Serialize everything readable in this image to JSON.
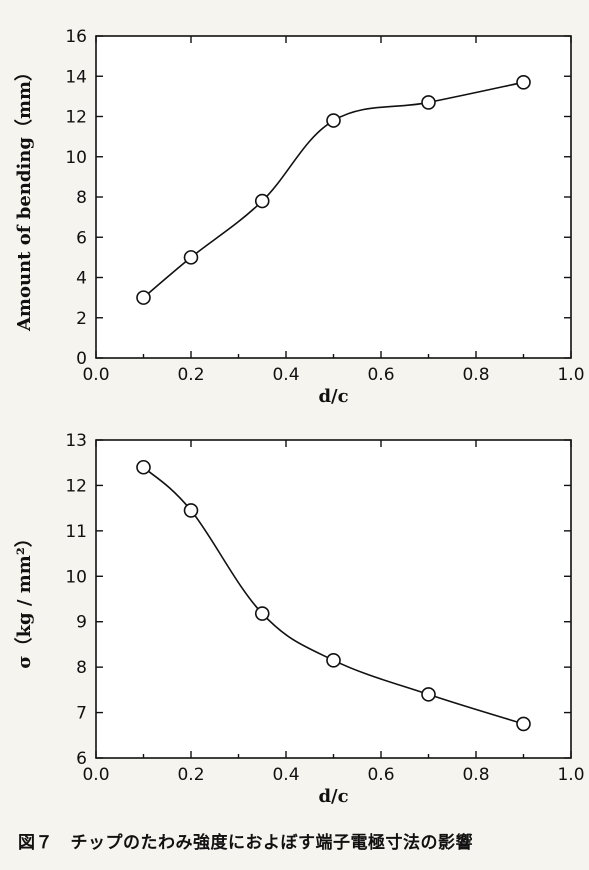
{
  "caption": "図７　チップのたわみ強度におよぼす端子電極寸法の影響",
  "chart_data": [
    {
      "type": "line",
      "xlabel": "d/c",
      "ylabel": "Amount of bending（mm）",
      "xlim": [
        0.0,
        1.0
      ],
      "ylim": [
        0,
        16
      ],
      "xticks": [
        "0.0",
        "0.2",
        "0.4",
        "0.6",
        "0.8",
        "1.0"
      ],
      "yticks": [
        "0",
        "2",
        "4",
        "6",
        "8",
        "10",
        "12",
        "14",
        "16"
      ],
      "grid": false,
      "series": [
        {
          "x": [
            0.1,
            0.2,
            0.35,
            0.5,
            0.7,
            0.9
          ],
          "values": [
            3.0,
            5.0,
            7.8,
            11.8,
            12.7,
            13.7
          ]
        }
      ]
    },
    {
      "type": "line",
      "xlabel": "d/c",
      "ylabel": "σ（kg / mm²）",
      "xlim": [
        0.0,
        1.0
      ],
      "ylim": [
        6,
        13
      ],
      "xticks": [
        "0.0",
        "0.2",
        "0.4",
        "0.6",
        "0.8",
        "1.0"
      ],
      "yticks": [
        "6",
        "7",
        "8",
        "9",
        "10",
        "11",
        "12",
        "13"
      ],
      "grid": false,
      "series": [
        {
          "x": [
            0.1,
            0.2,
            0.35,
            0.5,
            0.7,
            0.9
          ],
          "values": [
            12.4,
            11.45,
            9.18,
            8.15,
            7.4,
            6.75
          ]
        }
      ]
    }
  ]
}
